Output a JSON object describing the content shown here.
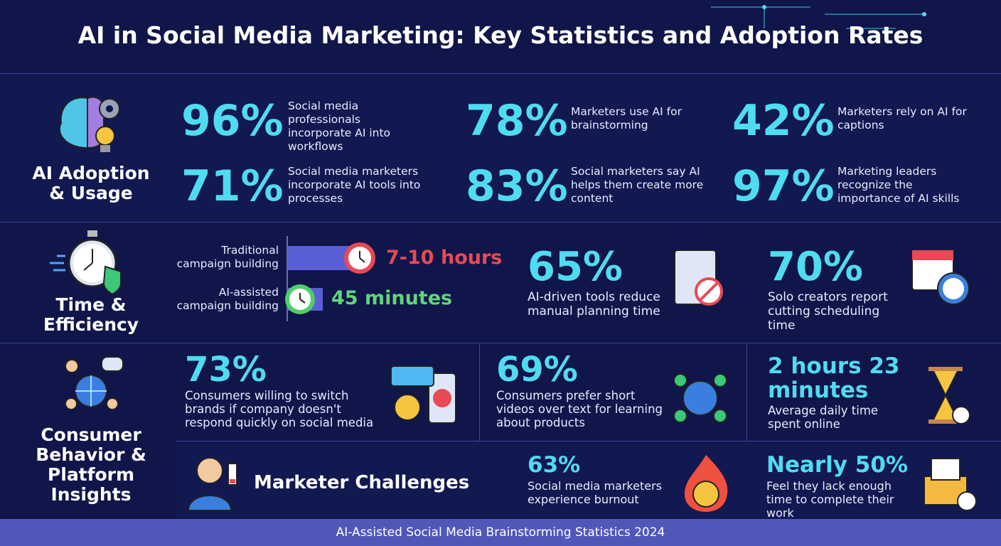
{
  "header": {
    "title": "AI in Social Media Marketing: Key Statistics and Adoption Rates"
  },
  "sections": [
    {
      "label": "AI Adoption & Usage",
      "stats": [
        {
          "value": "96%",
          "text": "Social media professionals incorporate AI into workflows"
        },
        {
          "value": "78%",
          "text": "Marketers use AI for brainstorming"
        },
        {
          "value": "42%",
          "text": "Marketers rely on AI for captions"
        },
        {
          "value": "71%",
          "text": "Social media marketers incorporate AI tools into processes"
        },
        {
          "value": "83%",
          "text": "Social marketers say AI helps them create more content"
        },
        {
          "value": "97%",
          "text": "Marketing leaders recognize the importance of AI skills"
        }
      ]
    },
    {
      "label": "Time & Efficiency",
      "comparison": [
        {
          "label": "Traditional campaign building",
          "value": "7-10 hours"
        },
        {
          "label": "AI-assisted campaign building",
          "value": "45 minutes"
        }
      ],
      "stats": [
        {
          "value": "65%",
          "text": "AI-driven tools reduce manual planning time"
        },
        {
          "value": "70%",
          "text": "Solo creators report cutting scheduling time"
        }
      ]
    },
    {
      "label": "Consumer Behavior & Platform Insights",
      "stats": [
        {
          "value": "73%",
          "text": "Consumers willing to switch brands if company doesn't respond quickly on social media"
        },
        {
          "value": "69%",
          "text": "Consumers prefer short videos over text for learning about products"
        },
        {
          "value": "2 hours 23 minutes",
          "text": "Average daily time spent online"
        }
      ],
      "challenges": {
        "title": "Marketer Challenges",
        "stats": [
          {
            "value": "63%",
            "text": "Social media marketers experience burnout"
          },
          {
            "value": "Nearly 50%",
            "text": "Feel they lack enough time to complete their work"
          }
        ]
      }
    }
  ],
  "footer": "AI-Assisted Social Media Brainstorming Statistics 2024"
}
